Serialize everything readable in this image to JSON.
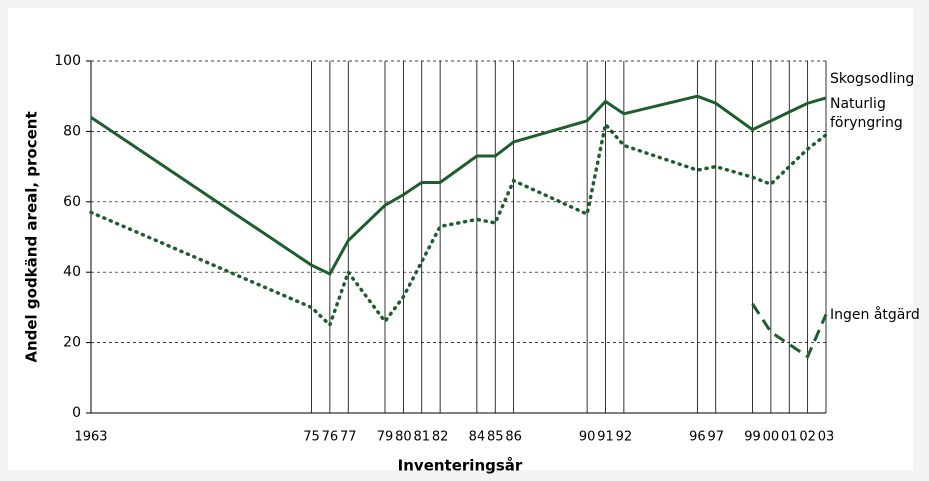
{
  "chart_data": {
    "type": "line",
    "xlabel": "Inventeringsår",
    "ylabel": "Andel godkänd areal, procent",
    "x": [
      1963,
      1975,
      1976,
      1977,
      1979,
      1980,
      1981,
      1982,
      1984,
      1985,
      1986,
      1990,
      1991,
      1992,
      1996,
      1997,
      1999,
      2000,
      2001,
      2002,
      2003
    ],
    "series": [
      {
        "name": "Skogsodling",
        "color": "#1e5e2e",
        "style": "solid",
        "values": [
          84,
          42,
          39.5,
          49,
          59,
          62,
          65.5,
          65.5,
          73,
          73,
          77,
          83,
          88.5,
          85,
          90,
          88,
          80.5,
          83,
          85.5,
          88,
          89.5
        ]
      },
      {
        "name": "Naturlig föryngring",
        "color": "#1e5e2e",
        "style": "dotted",
        "values": [
          57,
          30,
          25,
          40,
          26,
          33,
          43,
          53,
          55,
          54,
          66,
          56.5,
          82,
          76,
          69,
          70,
          67,
          65,
          70,
          75,
          79
        ]
      },
      {
        "name": "Ingen åtgärd",
        "color": "#1e5e2e",
        "style": "dashed",
        "values": [
          null,
          null,
          null,
          null,
          null,
          null,
          null,
          null,
          null,
          null,
          null,
          null,
          null,
          null,
          null,
          null,
          31,
          23,
          19.5,
          16,
          28
        ]
      }
    ],
    "xlim": [
      1963,
      2003
    ],
    "xticks": [
      1963,
      {
        "value": 1975,
        "label": "75"
      },
      {
        "value": 1976,
        "label": "76"
      },
      {
        "value": 1977,
        "label": "77"
      },
      {
        "value": 1979,
        "label": "79"
      },
      {
        "value": 1980,
        "label": "80"
      },
      {
        "value": 1981,
        "label": "81"
      },
      {
        "value": 1982,
        "label": "82"
      },
      {
        "value": 1984,
        "label": "84"
      },
      {
        "value": 1985,
        "label": "85"
      },
      {
        "value": 1986,
        "label": "86"
      },
      {
        "value": 1990,
        "label": "90"
      },
      {
        "value": 1991,
        "label": "91"
      },
      {
        "value": 1992,
        "label": "92"
      },
      {
        "value": 1996,
        "label": "96"
      },
      {
        "value": 1997,
        "label": "97"
      },
      {
        "value": 1999,
        "label": "99"
      },
      {
        "value": 2000,
        "label": "00"
      },
      {
        "value": 2001,
        "label": "01"
      },
      {
        "value": 2002,
        "label": "02"
      },
      {
        "value": 2003,
        "label": "03"
      }
    ],
    "ylim": [
      0,
      100
    ],
    "yticks": [
      0,
      20,
      40,
      60,
      80,
      100
    ],
    "grid": true
  }
}
